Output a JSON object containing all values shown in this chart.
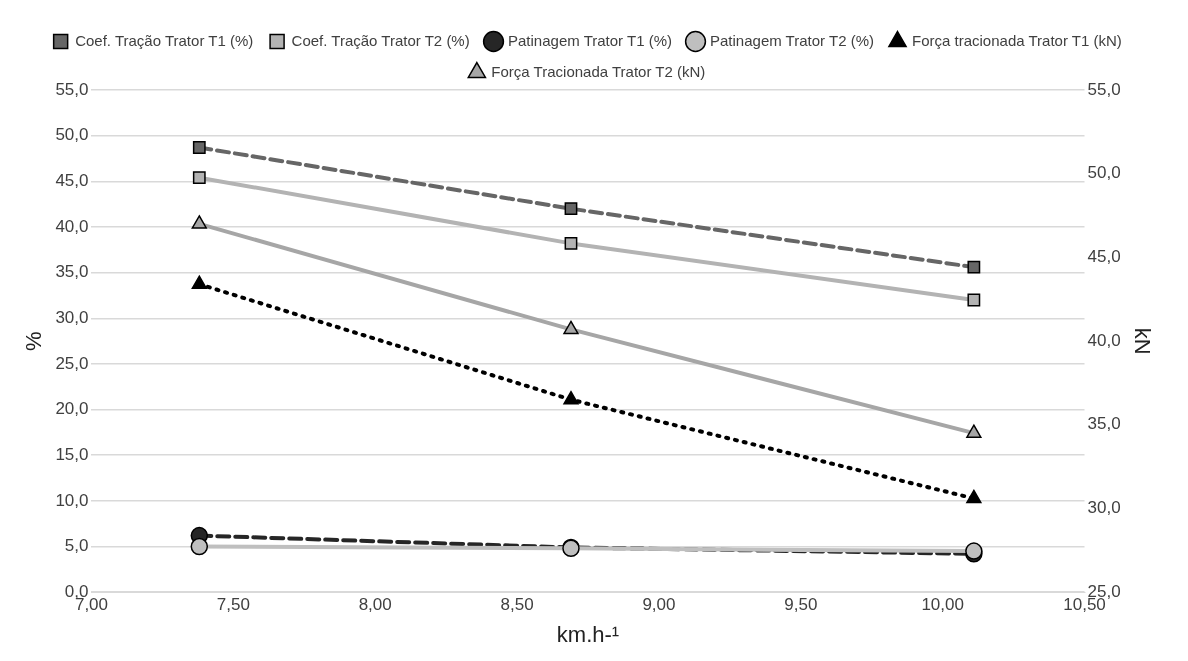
{
  "chart_data": {
    "type": "line",
    "xlabel": "km.h-¹",
    "ylabel": "%",
    "y2label": "kN",
    "x": [
      7.38,
      8.69,
      10.11
    ],
    "series": [
      {
        "name": "Coef. Tração Trator T1 (%)",
        "color": "#666666",
        "values": [
          48.7,
          42.0,
          35.6
        ],
        "marker": "square",
        "line_style": "dashed"
      },
      {
        "name": "Coef. Tração Trator T2 (%)",
        "color": "#b3b3b3",
        "values": [
          45.4,
          38.2,
          32.0
        ],
        "marker": "square",
        "line_style": "solid"
      },
      {
        "name": "Patinagem Trator T1 (%)",
        "color": "#262626",
        "values": [
          6.2,
          4.9,
          4.2
        ],
        "marker": "circle",
        "line_style": "dashed"
      },
      {
        "name": "Patinagem Trator T2 (%)",
        "color": "#bfbfbf",
        "values": [
          5.0,
          4.8,
          4.5
        ],
        "marker": "circle",
        "line_style": "solid"
      },
      {
        "name": "Força tracionada Trator T1 (kN)",
        "color": "#000000",
        "values": [
          43.4,
          36.5,
          30.6
        ],
        "marker": "triangle",
        "line_style": "dotted",
        "axis": "y2"
      },
      {
        "name": "Força Tracionada Trator T2 (kN)",
        "color": "#a6a6a6",
        "values": [
          47.0,
          40.7,
          34.5
        ],
        "marker": "triangle",
        "line_style": "solid",
        "axis": "y2"
      }
    ],
    "xlim": [
      7.0,
      10.5
    ],
    "xticks": [
      {
        "value": 7.0,
        "label": "7,00"
      },
      {
        "value": 7.5,
        "label": "7,50"
      },
      {
        "value": 8.0,
        "label": "8,00"
      },
      {
        "value": 8.5,
        "label": "8,50"
      },
      {
        "value": 9.0,
        "label": "9,00"
      },
      {
        "value": 9.5,
        "label": "9,50"
      },
      {
        "value": 10.0,
        "label": "10,00"
      },
      {
        "value": 10.5,
        "label": "10,50"
      }
    ],
    "ylim": [
      0,
      55
    ],
    "yticks": [
      {
        "value": 0,
        "label": "0,0"
      },
      {
        "value": 5,
        "label": "5,0"
      },
      {
        "value": 10,
        "label": "10,0"
      },
      {
        "value": 15,
        "label": "15,0"
      },
      {
        "value": 20,
        "label": "20,0"
      },
      {
        "value": 25,
        "label": "25,0"
      },
      {
        "value": 30,
        "label": "30,0"
      },
      {
        "value": 35,
        "label": "35,0"
      },
      {
        "value": 40,
        "label": "40,0"
      },
      {
        "value": 45,
        "label": "45,0"
      },
      {
        "value": 50,
        "label": "50,0"
      },
      {
        "value": 55,
        "label": "55,0"
      }
    ],
    "y2lim": [
      25,
      55
    ],
    "y2ticks": [
      {
        "value": 25,
        "label": "25,0"
      },
      {
        "value": 30,
        "label": "30,0"
      },
      {
        "value": 35,
        "label": "35,0"
      },
      {
        "value": 40,
        "label": "40,0"
      },
      {
        "value": 45,
        "label": "45,0"
      },
      {
        "value": 50,
        "label": "50,0"
      },
      {
        "value": 55,
        "label": "55,0"
      }
    ],
    "grid": "y",
    "legend": "top"
  }
}
